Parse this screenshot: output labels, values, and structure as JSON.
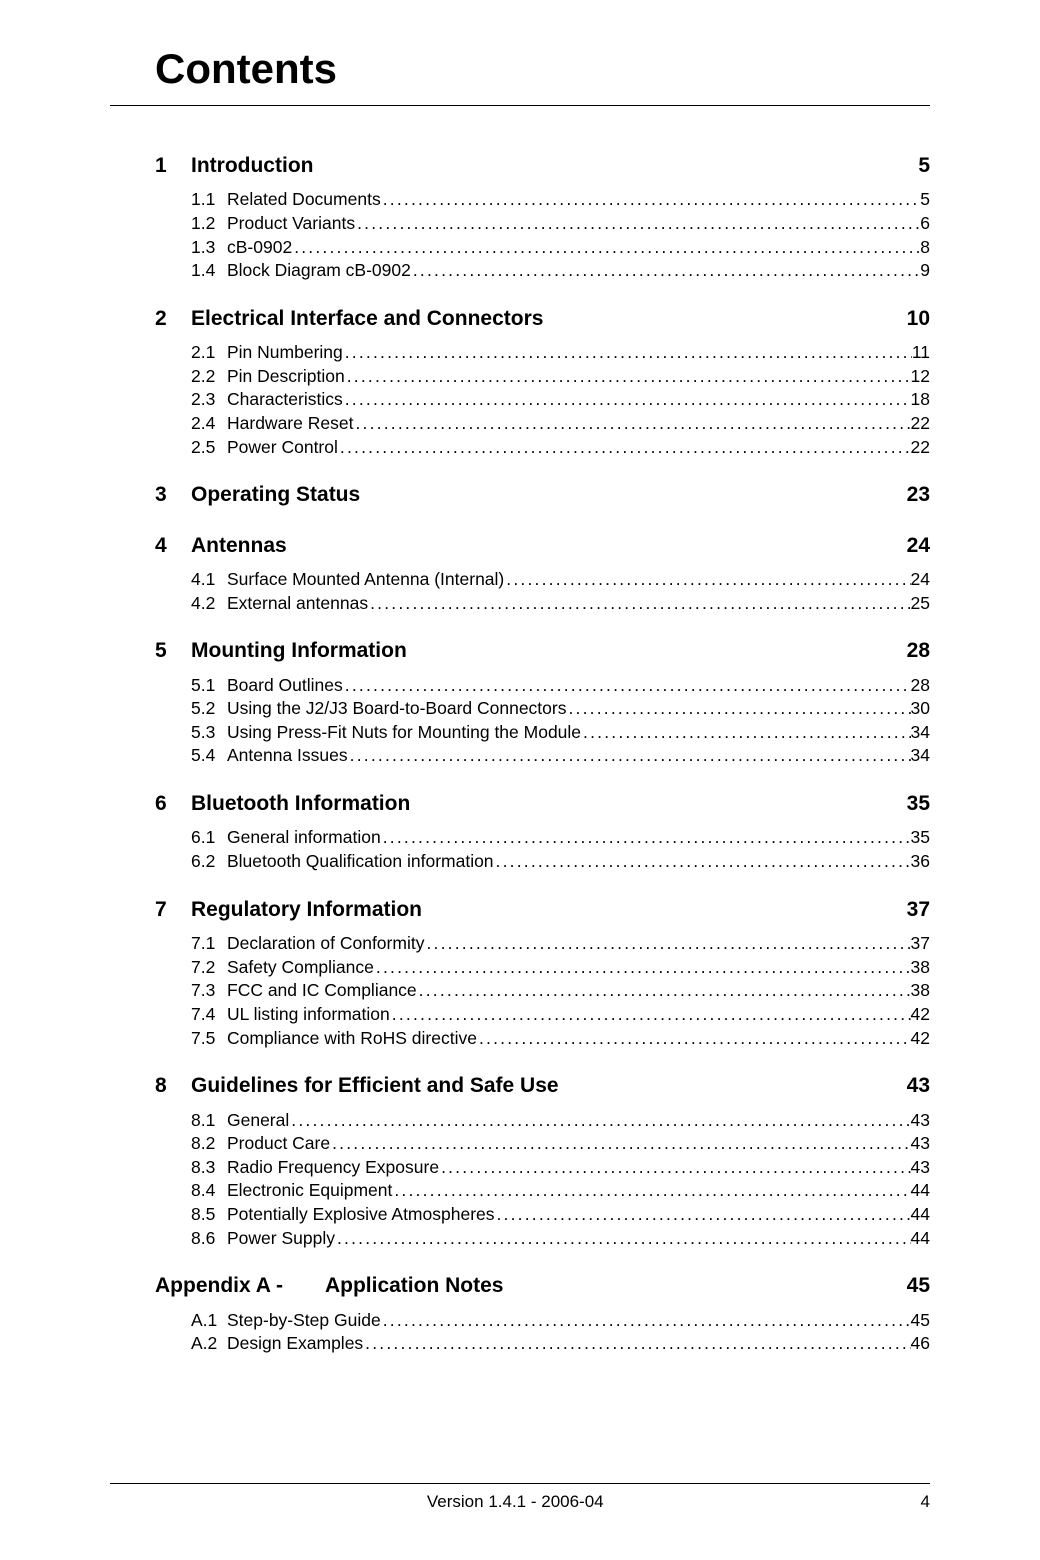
{
  "docTitle": "Contents",
  "footer": {
    "version": "Version 1.4.1 - 2006-04",
    "pageNum": "4"
  },
  "chapters": [
    {
      "num": "1",
      "title": "Introduction",
      "page": "5",
      "subs": [
        {
          "num": "1.1",
          "title": "Related Documents",
          "page": "5"
        },
        {
          "num": "1.2",
          "title": "Product Variants",
          "page": "6"
        },
        {
          "num": "1.3",
          "title": "cB-0902",
          "page": "8"
        },
        {
          "num": "1.4",
          "title": "Block Diagram cB-0902",
          "page": "9"
        }
      ]
    },
    {
      "num": "2",
      "title": "Electrical Interface and Connectors",
      "page": "10",
      "subs": [
        {
          "num": "2.1",
          "title": "Pin Numbering",
          "page": "11"
        },
        {
          "num": "2.2",
          "title": "Pin Description",
          "page": "12"
        },
        {
          "num": "2.3",
          "title": "Characteristics",
          "page": "18"
        },
        {
          "num": "2.4",
          "title": "Hardware Reset",
          "page": "22"
        },
        {
          "num": "2.5",
          "title": "Power Control",
          "page": "22"
        }
      ]
    },
    {
      "num": "3",
      "title": "Operating Status",
      "page": "23",
      "subs": []
    },
    {
      "num": "4",
      "title": "Antennas",
      "page": "24",
      "subs": [
        {
          "num": "4.1",
          "title": "Surface Mounted Antenna (Internal)",
          "page": "24"
        },
        {
          "num": "4.2",
          "title": "External antennas",
          "page": "25"
        }
      ]
    },
    {
      "num": "5",
      "title": "Mounting Information",
      "page": "28",
      "subs": [
        {
          "num": "5.1",
          "title": "Board Outlines",
          "page": "28"
        },
        {
          "num": "5.2",
          "title": "Using the J2/J3 Board-to-Board Connectors",
          "page": "30"
        },
        {
          "num": "5.3",
          "title": "Using Press-Fit Nuts for Mounting the Module",
          "page": "34"
        },
        {
          "num": "5.4",
          "title": "Antenna Issues",
          "page": "34"
        }
      ]
    },
    {
      "num": "6",
      "title": "Bluetooth Information",
      "page": "35",
      "subs": [
        {
          "num": "6.1",
          "title": "General information",
          "page": "35"
        },
        {
          "num": "6.2",
          "title": "Bluetooth Qualification information",
          "page": "36"
        }
      ]
    },
    {
      "num": "7",
      "title": "Regulatory Information",
      "page": "37",
      "subs": [
        {
          "num": "7.1",
          "title": "Declaration of Conformity",
          "page": "37"
        },
        {
          "num": "7.2",
          "title": "Safety Compliance",
          "page": "38"
        },
        {
          "num": "7.3",
          "title": "FCC and IC Compliance",
          "page": "38"
        },
        {
          "num": "7.4",
          "title": "UL listing information",
          "page": "42"
        },
        {
          "num": "7.5",
          "title": "Compliance with RoHS directive",
          "page": "42"
        }
      ]
    },
    {
      "num": "8",
      "title": "Guidelines for Efficient and Safe Use",
      "page": "43",
      "subs": [
        {
          "num": "8.1",
          "title": "General",
          "page": "43"
        },
        {
          "num": "8.2",
          "title": "Product Care",
          "page": "43"
        },
        {
          "num": "8.3",
          "title": "Radio Frequency Exposure",
          "page": "43"
        },
        {
          "num": "8.4",
          "title": "Electronic Equipment",
          "page": "44"
        },
        {
          "num": "8.5",
          "title": "Potentially Explosive Atmospheres",
          "page": "44"
        },
        {
          "num": "8.6",
          "title": "Power Supply",
          "page": "44"
        }
      ]
    }
  ],
  "appendix": {
    "label": "Appendix A -",
    "title": "Application Notes",
    "page": "45",
    "subs": [
      {
        "num": "A.1",
        "title": "Step-by-Step Guide",
        "page": "45"
      },
      {
        "num": "A.2",
        "title": "Design Examples",
        "page": "46"
      }
    ]
  },
  "leader": "........................................................................................................................................................"
}
